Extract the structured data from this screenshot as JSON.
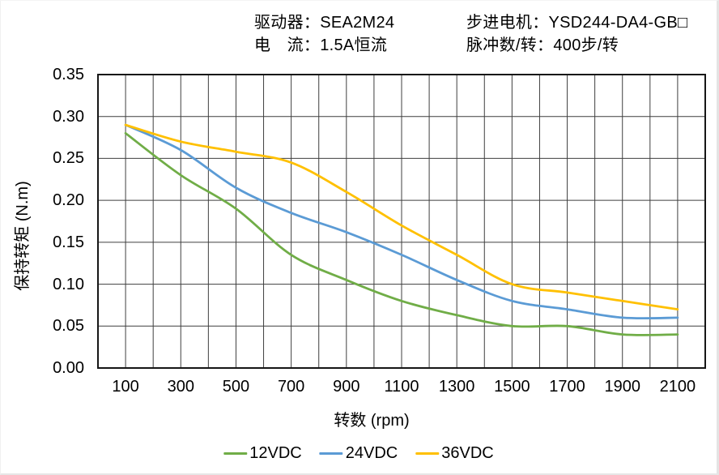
{
  "header": {
    "driver": "驱动器：SEA2M24",
    "current": "电　流：1.5A恒流",
    "motor": "步进电机：YSD244-DA4-GB□",
    "pulses": "脉冲数/转：400步/转"
  },
  "chart_data": {
    "type": "line",
    "title": "",
    "x": [
      100,
      300,
      500,
      700,
      900,
      1100,
      1300,
      1500,
      1700,
      1900,
      2100
    ],
    "series": [
      {
        "name": "12VDC",
        "color": "#70AD47",
        "values": [
          0.28,
          0.23,
          0.19,
          0.135,
          0.105,
          0.08,
          0.063,
          0.05,
          0.05,
          0.04,
          0.04
        ]
      },
      {
        "name": "24VDC",
        "color": "#5B9BD5",
        "values": [
          0.29,
          0.26,
          0.215,
          0.185,
          0.162,
          0.135,
          0.105,
          0.08,
          0.07,
          0.06,
          0.06
        ]
      },
      {
        "name": "36VDC",
        "color": "#FFC000",
        "values": [
          0.29,
          0.27,
          0.258,
          0.245,
          0.21,
          0.17,
          0.135,
          0.1,
          0.09,
          0.08,
          0.07
        ]
      }
    ],
    "xlabel": "转数 (rpm)",
    "ylabel": "保持转矩 (N.m)",
    "xlim": [
      0,
      2200
    ],
    "ylim": [
      0,
      0.35
    ],
    "xticks": [
      100,
      300,
      500,
      700,
      900,
      1100,
      1300,
      1500,
      1700,
      1900,
      2100
    ],
    "yticks": [
      "0.00",
      "0.05",
      "0.10",
      "0.15",
      "0.20",
      "0.25",
      "0.30",
      "0.35"
    ],
    "x_grid_step": 100,
    "y_grid_step": 0.05,
    "grid": true,
    "legend_position": "bottom",
    "grid_color": "#3f3f3f",
    "border_color": "#161616"
  }
}
